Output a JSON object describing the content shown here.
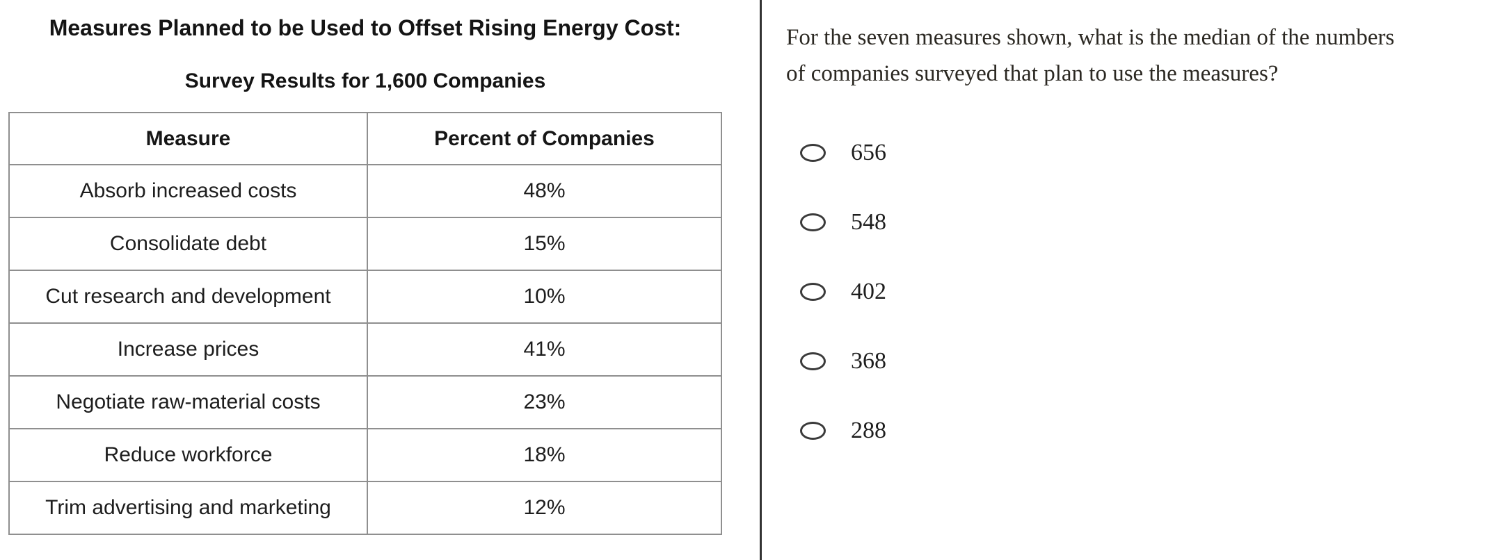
{
  "table_panel": {
    "title": "Measures Planned to be Used to Offset Rising Energy Cost:",
    "subtitle": "Survey Results for 1,600 Companies",
    "columns": [
      "Measure",
      "Percent of Companies"
    ],
    "rows": [
      {
        "measure": "Absorb increased costs",
        "percent": "48%"
      },
      {
        "measure": "Consolidate debt",
        "percent": "15%"
      },
      {
        "measure": "Cut research and development",
        "percent": "10%"
      },
      {
        "measure": "Increase prices",
        "percent": "41%"
      },
      {
        "measure": "Negotiate raw-material costs",
        "percent": "23%"
      },
      {
        "measure": "Reduce workforce",
        "percent": "18%"
      },
      {
        "measure": "Trim advertising and marketing",
        "percent": "12%"
      }
    ]
  },
  "question_panel": {
    "question_lines": [
      "For the seven measures shown, what is the median of the numbers",
      "of companies surveyed that plan to use the measures?"
    ],
    "options": [
      {
        "label": "656",
        "selected": false
      },
      {
        "label": "548",
        "selected": false
      },
      {
        "label": "402",
        "selected": false
      },
      {
        "label": "368",
        "selected": false
      },
      {
        "label": "288",
        "selected": false
      }
    ]
  },
  "colors": {
    "background": "#ffffff",
    "table_border": "#8f8f8f",
    "divider": "#333333",
    "table_text": "#1d1d1d",
    "question_text": "#2b2822"
  }
}
